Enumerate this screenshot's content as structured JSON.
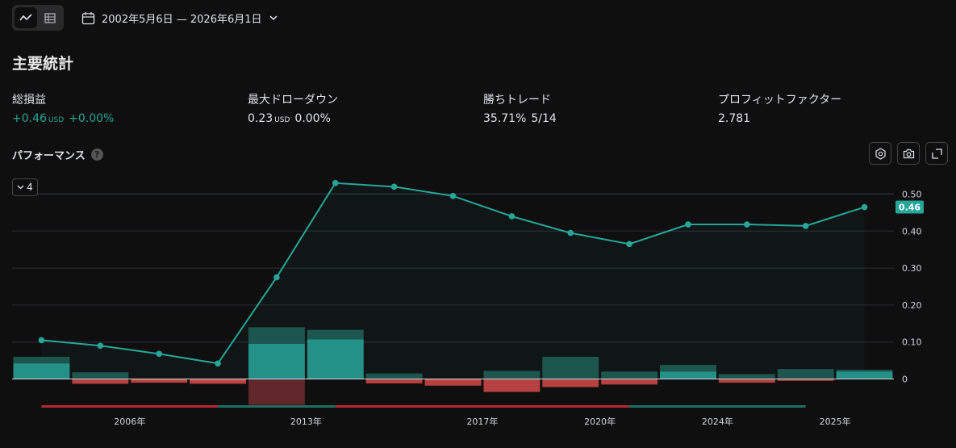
{
  "toolbar": {
    "date_range": "2002年5月6日 — 2026年6月1日"
  },
  "title": "主要統計",
  "stats": [
    {
      "label": "総損益",
      "value": "+0.46",
      "unit": "USD",
      "extra": "+0.00%"
    },
    {
      "label": "最大ドローダウン",
      "value": "0.23",
      "unit": "USD",
      "extra": "0.00%"
    },
    {
      "label": "勝ちトレード",
      "value": "35.71%",
      "unit": "",
      "extra": "5/14"
    },
    {
      "label": "プロフィットファクター",
      "value": "2.781",
      "unit": "",
      "extra": ""
    }
  ],
  "performance": {
    "title": "パフォーマンス",
    "help": "?",
    "collapse_count": "4"
  },
  "colors": {
    "accent": "#26a69a",
    "negative": "#ef5350",
    "background": "#0f0f0f"
  },
  "icons": [
    "line-chart-icon",
    "table-icon",
    "calendar-icon",
    "chevron-down-icon",
    "settings-icon",
    "camera-icon",
    "fullscreen-icon",
    "help-icon"
  ],
  "chart_data": {
    "type": "line",
    "series": [
      {
        "values": [
          0.105,
          0.09,
          0.068,
          0.042,
          0.275,
          0.53,
          0.52,
          0.495,
          0.44,
          0.395,
          0.365,
          0.418,
          0.418,
          0.414,
          0.465
        ]
      }
    ],
    "bars_upper": [
      0.06,
      0.018,
      -0.005,
      -0.007,
      0.14,
      0.133,
      0.015,
      -0.005,
      0.022,
      0.06,
      0.02,
      0.038,
      0.013,
      0.027,
      0.025
    ],
    "bars_lower": [
      0.042,
      -0.013,
      -0.01,
      -0.013,
      0.095,
      0.107,
      -0.012,
      -0.018,
      -0.035,
      -0.022,
      -0.015,
      0.02,
      -0.01,
      -0.005,
      0.02
    ],
    "drawdown_low": [
      0,
      0,
      0,
      0,
      -0.07,
      0,
      0,
      0,
      0,
      0,
      0,
      0,
      0,
      0,
      0
    ],
    "last_value_label": "0.46",
    "y_ticks": [
      "0.50",
      "0.40",
      "0.30",
      "0.20",
      "0.10",
      "0"
    ],
    "y_tick_values": [
      0.5,
      0.4,
      0.3,
      0.2,
      0.1,
      0
    ],
    "x_ticks": [
      "2006年",
      "2013年",
      "2017年",
      "2020年",
      "2024年",
      "2025年"
    ],
    "x_tick_index": [
      1.5,
      4.5,
      7.5,
      9.5,
      11.5,
      13.5
    ],
    "ylim": [
      -0.07,
      0.54
    ],
    "trade_bar": [
      {
        "from": 0,
        "to": 3,
        "outcome": "loss"
      },
      {
        "from": 3,
        "to": 5,
        "outcome": "win"
      },
      {
        "from": 5,
        "to": 10,
        "outcome": "loss"
      },
      {
        "from": 10,
        "to": 13,
        "outcome": "win"
      }
    ],
    "grid": true
  }
}
